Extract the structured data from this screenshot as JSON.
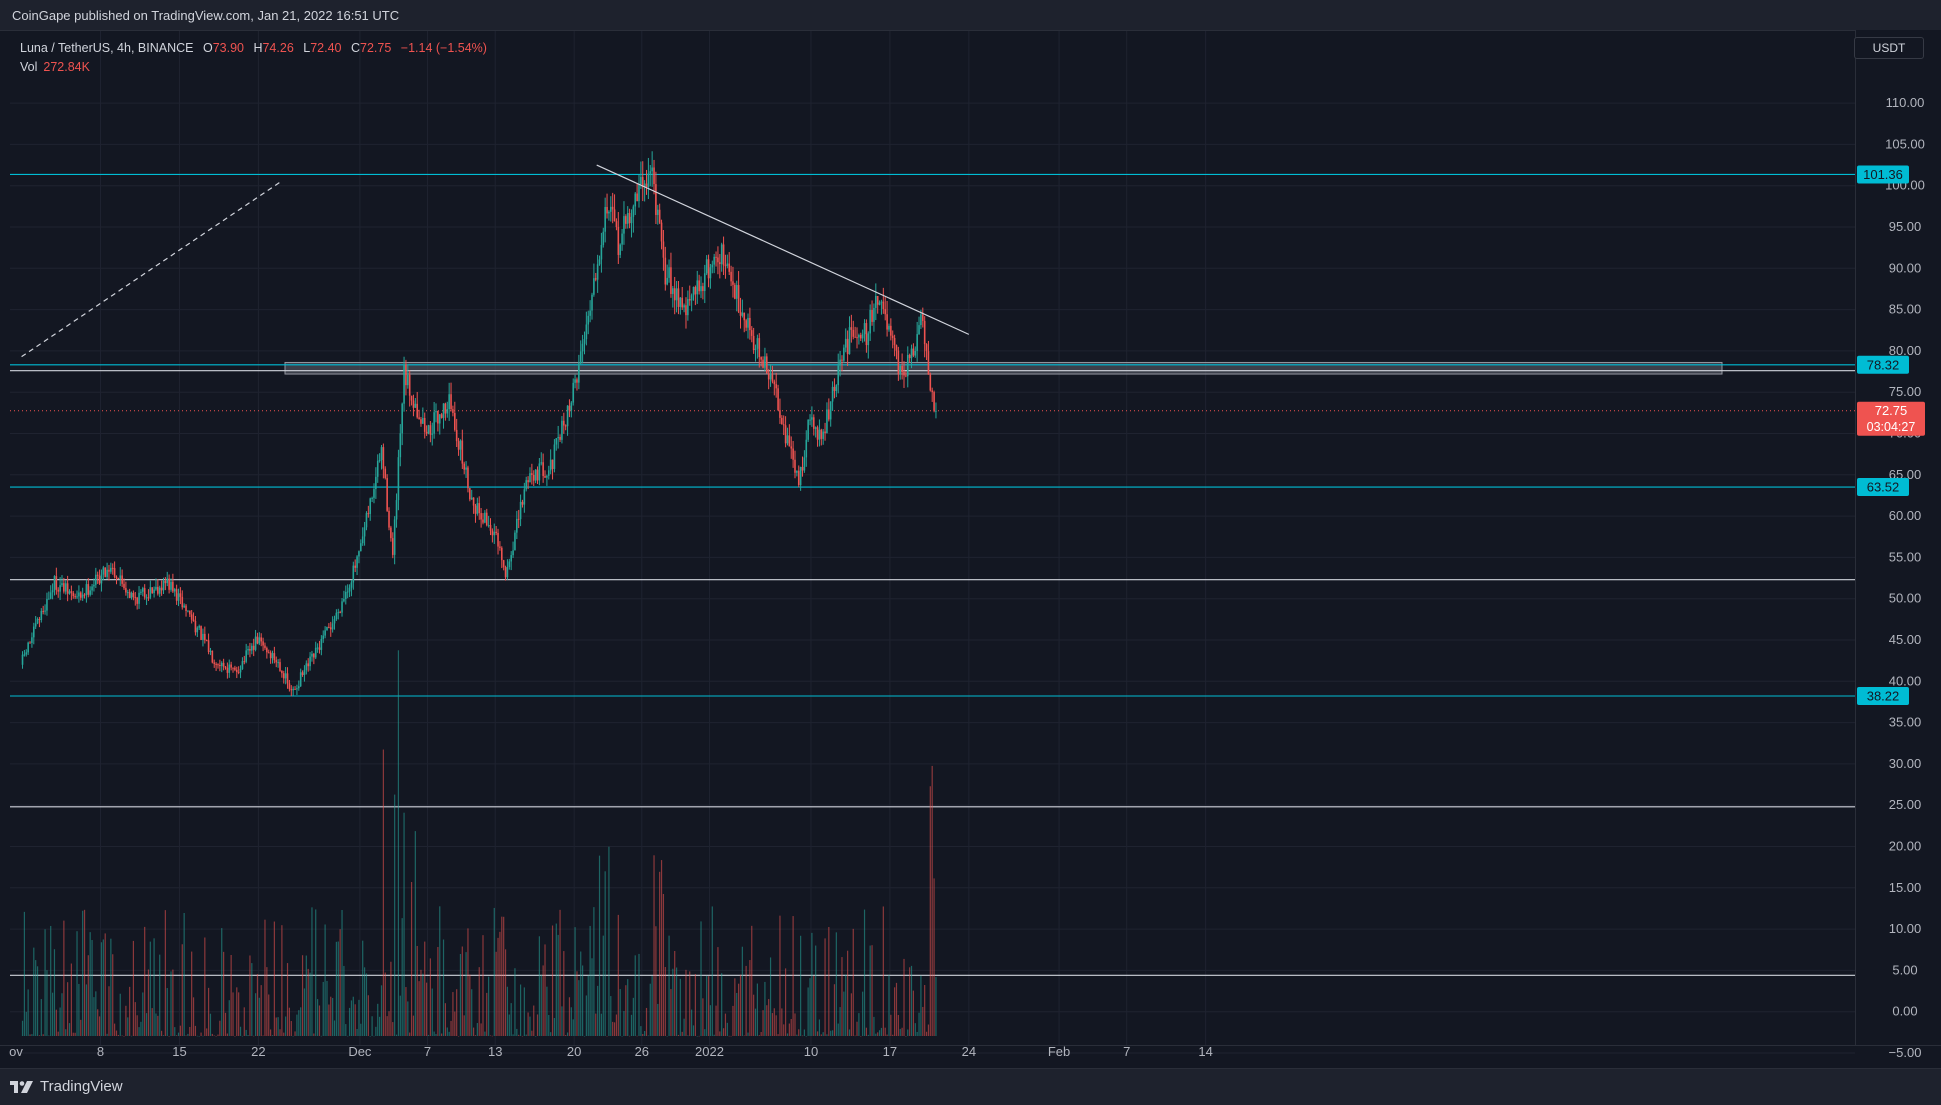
{
  "header": {
    "publish_text": "CoinGape published on TradingView.com, Jan 21, 2022 16:51 UTC"
  },
  "legend": {
    "symbol": "Luna / TetherUS, 4h, BINANCE",
    "open_label": "O",
    "open": "73.90",
    "high_label": "H",
    "high": "74.26",
    "low_label": "L",
    "low": "72.40",
    "close_label": "C",
    "close": "72.75",
    "change": "−1.14 (−1.54%)",
    "volume_label": "Vol",
    "volume": "272.84K"
  },
  "price_axis": {
    "currency": "USDT"
  },
  "price_tag": {
    "price": "72.75",
    "countdown": "03:04:27"
  },
  "footer": {
    "brand": "TradingView"
  },
  "colors": {
    "background": "#131722",
    "up": "#26a69a",
    "down": "#ef5350",
    "level_cyan": "#00bcd4",
    "level_white": "#d1d4dc",
    "zone": "#787b86"
  },
  "chart_data": {
    "type": "candlestick",
    "timeframe": "4h",
    "x_ticks": [
      "ov",
      "8",
      "15",
      "22",
      "Dec",
      "7",
      "13",
      "20",
      "26",
      "2022",
      "10",
      "17",
      "24",
      "Feb",
      "7",
      "14"
    ],
    "y_ticks": [
      "110.00",
      "105.00",
      "100.00",
      "95.00",
      "90.00",
      "85.00",
      "80.00",
      "75.00",
      "70.00",
      "65.00",
      "60.00",
      "55.00",
      "50.00",
      "45.00",
      "40.00",
      "35.00",
      "30.00",
      "25.00",
      "20.00",
      "15.00",
      "10.00",
      "5.00",
      "0.00",
      "−5.00"
    ],
    "ylim": [
      -7.5,
      112
    ],
    "price_path": [
      [
        "Nov 1",
        42
      ],
      [
        "Nov 4",
        52
      ],
      [
        "Nov 6",
        50
      ],
      [
        "Nov 9",
        54
      ],
      [
        "Nov 11",
        50
      ],
      [
        "Nov 14",
        52
      ],
      [
        "Nov 16",
        48
      ],
      [
        "Nov 18",
        43
      ],
      [
        "Nov 20",
        41
      ],
      [
        "Nov 22",
        45
      ],
      [
        "Nov 24",
        42
      ],
      [
        "Nov 25",
        38.5
      ],
      [
        "Nov 27",
        43
      ],
      [
        "Nov 29",
        48
      ],
      [
        "Dec 1",
        55
      ],
      [
        "Dec 3",
        68
      ],
      [
        "Dec 4",
        55
      ],
      [
        "Dec 5",
        77
      ],
      [
        "Dec 7",
        70
      ],
      [
        "Dec 9",
        74
      ],
      [
        "Dec 11",
        62
      ],
      [
        "Dec 13",
        58
      ],
      [
        "Dec 14",
        52.5
      ],
      [
        "Dec 16",
        65
      ],
      [
        "Dec 18",
        66
      ],
      [
        "Dec 20",
        75
      ],
      [
        "Dec 21",
        82
      ],
      [
        "Dec 23",
        98
      ],
      [
        "Dec 24",
        93
      ],
      [
        "Dec 26",
        100
      ],
      [
        "Dec 27",
        102
      ],
      [
        "Dec 28",
        90
      ],
      [
        "Dec 30",
        85
      ],
      [
        "Jan 1",
        90
      ],
      [
        "Jan 2",
        92
      ],
      [
        "Jan 4",
        85
      ],
      [
        "Jan 6",
        78
      ],
      [
        "Jan 7",
        75
      ],
      [
        "Jan 8",
        69
      ],
      [
        "Jan 9",
        64
      ],
      [
        "Jan 10",
        72
      ],
      [
        "Jan 11",
        69
      ],
      [
        "Jan 13",
        80
      ],
      [
        "Jan 14",
        83
      ],
      [
        "Jan 15",
        82
      ],
      [
        "Jan 16",
        87
      ],
      [
        "Jan 17",
        82
      ],
      [
        "Jan 18",
        77
      ],
      [
        "Jan 19",
        79
      ],
      [
        "Jan 20",
        84
      ],
      [
        "Jan 20.5",
        76
      ],
      [
        "Jan 21",
        72.75
      ]
    ],
    "volume_scale_max": 23,
    "horizontal_levels": [
      {
        "price": 101.36,
        "label": "101.36",
        "color": "cyan"
      },
      {
        "price": 78.32,
        "label": "78.32",
        "color": "cyan"
      },
      {
        "price": 77.6,
        "label": "",
        "color": "white"
      },
      {
        "price": 63.52,
        "label": "63.52",
        "color": "cyan"
      },
      {
        "price": 52.3,
        "label": "",
        "color": "white"
      },
      {
        "price": 38.22,
        "label": "38.22",
        "color": "cyan"
      },
      {
        "price": 24.8,
        "label": "",
        "color": "white"
      },
      {
        "price": 4.4,
        "label": "",
        "color": "white"
      }
    ],
    "zone": {
      "from": 77.2,
      "to": 78.6
    },
    "trendline": {
      "start": [
        "Dec 22",
        102.5
      ],
      "end": [
        "Jan 24",
        82
      ]
    },
    "dashed_line": {
      "start": [
        "Oct 31",
        79.3
      ],
      "end": [
        "Nov 24",
        100.5
      ]
    }
  }
}
